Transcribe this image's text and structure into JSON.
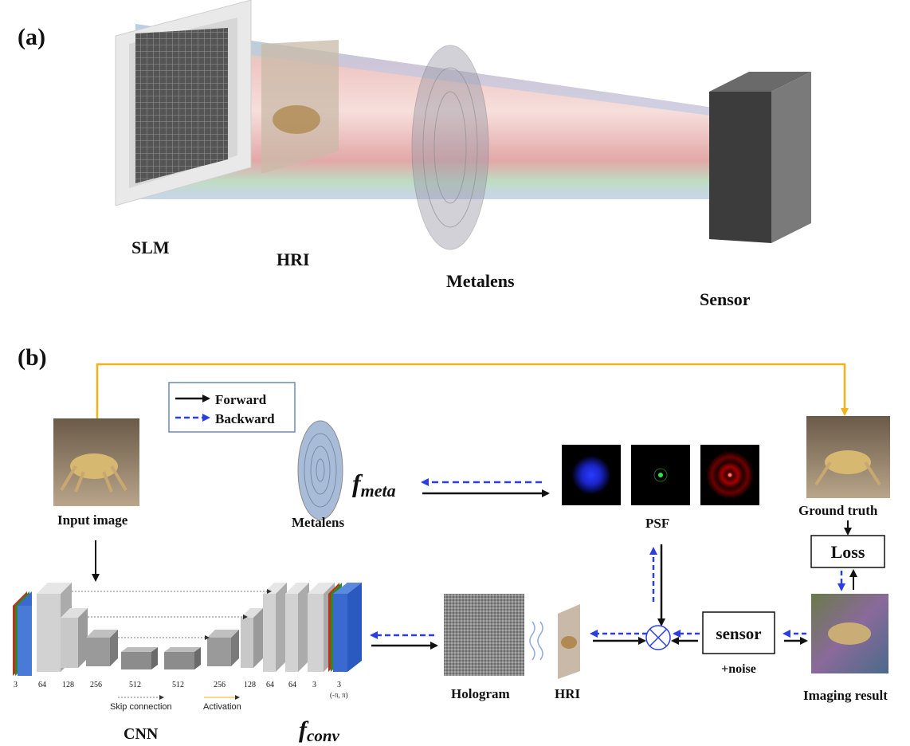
{
  "panel_a": {
    "label": "(a)",
    "slm": "SLM",
    "hri": "HRI",
    "metalens": "Metalens",
    "sensor": "Sensor"
  },
  "panel_b": {
    "label": "(b)",
    "legend": {
      "forward": "Forward",
      "backward": "Backward"
    },
    "input_image": "Input image",
    "metalens": "Metalens",
    "f_meta_f": "f",
    "f_meta_sub": "meta",
    "psf": "PSF",
    "ground_truth": "Ground truth",
    "loss": "Loss",
    "sensor": "sensor",
    "noise": "+noise",
    "hologram": "Hologram",
    "hri": "HRI",
    "imaging_result": "Imaging result",
    "cnn": "CNN",
    "f_conv_f": "f",
    "f_conv_sub": "conv",
    "skip_connection": "Skip connection",
    "activation": "Activation",
    "channels": [
      "3",
      "64",
      "128",
      "256",
      "512",
      "512",
      "256",
      "128",
      "64",
      "64",
      "3",
      "3"
    ],
    "range": "(-π, π)"
  },
  "colors": {
    "forward": "#111111",
    "backward": "#2b3fe0",
    "skip_line": "#f2b21a",
    "beam": "#d98b8b"
  }
}
